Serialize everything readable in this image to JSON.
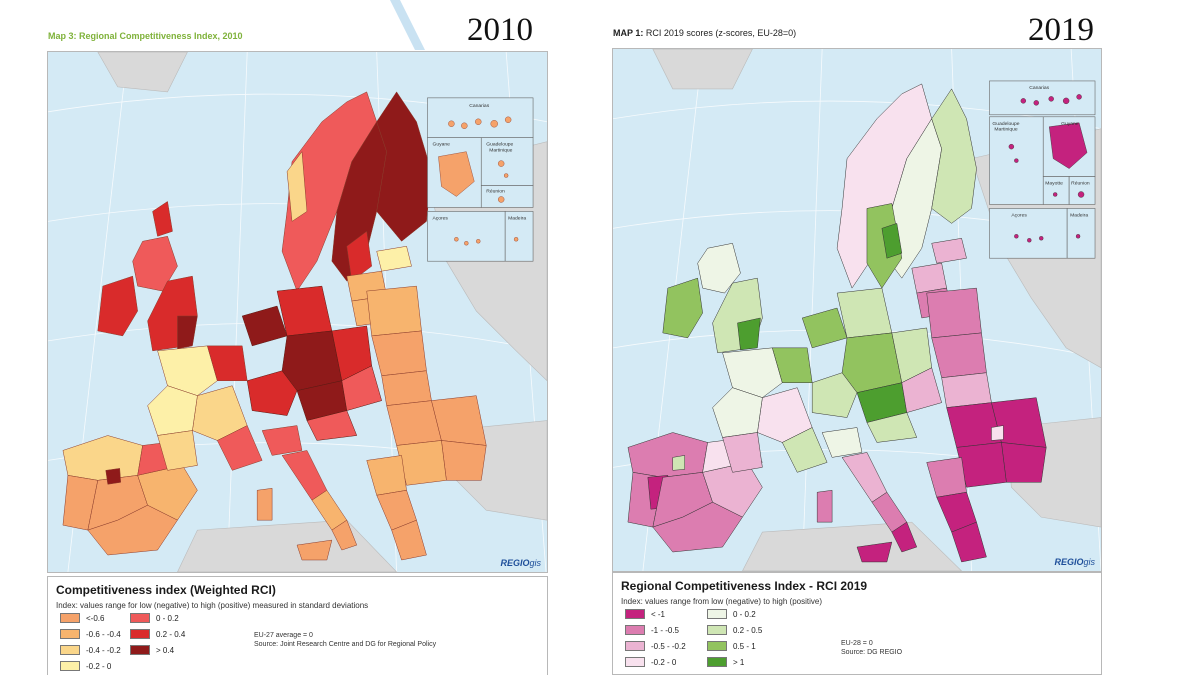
{
  "left": {
    "caption": "Map 3: Regional Competitiveness Index, 2010",
    "year": "2010",
    "brand": "REGIO",
    "brand_suffix": "gis",
    "insets": [
      "Canarias",
      "Guyane",
      "Guadeloupe",
      "Martinique",
      "Réunion",
      "Açores",
      "Madeira"
    ],
    "legend": {
      "title": "Competitiveness index (Weighted RCI)",
      "subtitle": "Index: values range for low (negative) to high (positive) measured in standard deviations",
      "items": [
        {
          "label": "<-0.6",
          "color": "#f5a26a"
        },
        {
          "label": "-0.6 - -0.4",
          "color": "#f7b46e"
        },
        {
          "label": "-0.4 - -0.2",
          "color": "#fad68a"
        },
        {
          "label": "-0.2 - 0",
          "color": "#fdf0a8"
        },
        {
          "label": "0 - 0.2",
          "color": "#ef5a5a"
        },
        {
          "label": "0.2 - 0.4",
          "color": "#d92b2b"
        },
        {
          "label": "> 0.4",
          "color": "#8f1a1a"
        }
      ],
      "note_line1": "EU-27 average = 0",
      "note_line2": "Source: Joint Research Centre and DG for Regional Policy"
    }
  },
  "right": {
    "caption_bold": "MAP 1:",
    "caption_rest": "RCI 2019 scores (z-scores, EU-28=0)",
    "year": "2019",
    "brand": "REGIO",
    "brand_suffix": "gis",
    "insets": [
      "Canarias",
      "Guadeloupe",
      "Martinique",
      "Guyane",
      "Mayotte",
      "Réunion",
      "Açores",
      "Madeira"
    ],
    "legend": {
      "title": "Regional Competitiveness Index - RCI 2019",
      "subtitle": "Index: values range from low (negative) to high (positive)",
      "items": [
        {
          "label": "< -1",
          "color": "#c4227e"
        },
        {
          "label": "-1 - -0.5",
          "color": "#dc7db0"
        },
        {
          "label": "-0.5 - -0.2",
          "color": "#ebb3d2"
        },
        {
          "label": "-0.2 - 0",
          "color": "#f8e1ee"
        },
        {
          "label": "0 - 0.2",
          "color": "#eef5e6"
        },
        {
          "label": "0.2 - 0.5",
          "color": "#cfe6b4"
        },
        {
          "label": "0.5 - 1",
          "color": "#92c35f"
        },
        {
          "label": "> 1",
          "color": "#4d9e2f"
        }
      ],
      "note_line1": "EU-28 = 0",
      "note_line2": "Source: DG REGIO"
    }
  }
}
